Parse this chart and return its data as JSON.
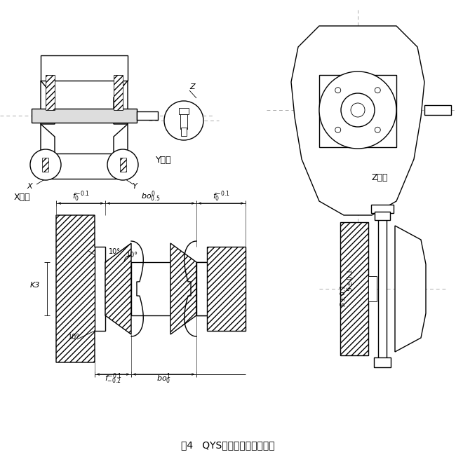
{
  "title": "图4   QYS型减速器的支承型式",
  "bg_color": "#ffffff",
  "line_color": "#000000",
  "label_X_fangda": "X放大",
  "label_Y_fangda": "Y放大",
  "label_Z_fangda": "Z放大",
  "X_label": "X",
  "Y_label": "Y",
  "Z_label": "Z",
  "angle_10": "10°",
  "K_label": "K3"
}
